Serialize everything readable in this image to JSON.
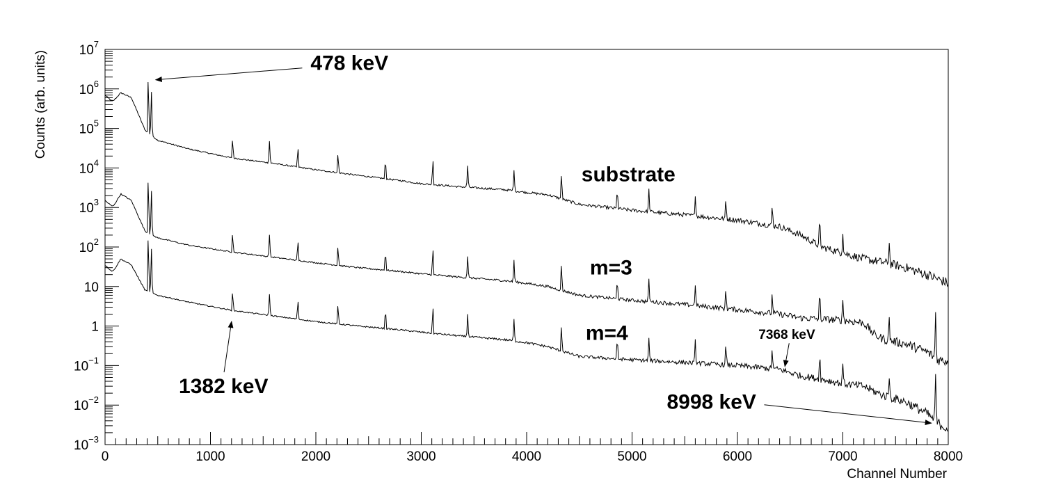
{
  "chart_data": {
    "type": "line",
    "title": "",
    "xlabel": "Channel Number",
    "ylabel": "Counts (arb. units)",
    "xlim": [
      0,
      8000
    ],
    "ylim": [
      0.001,
      10000000
    ],
    "y_scale": "log",
    "grid": false,
    "legend": "none",
    "x_ticks": [
      "0",
      "1000",
      "2000",
      "3000",
      "4000",
      "5000",
      "6000",
      "7000",
      "8000"
    ],
    "y_ticks": [
      {
        "base": "10",
        "exp": "−3",
        "value": 0.001
      },
      {
        "base": "10",
        "exp": "−2",
        "value": 0.01
      },
      {
        "base": "10",
        "exp": "−1",
        "value": 0.1
      },
      {
        "base": "1",
        "exp": "",
        "value": 1
      },
      {
        "base": "10",
        "exp": "",
        "value": 10
      },
      {
        "base": "10",
        "exp": "2",
        "value": 100
      },
      {
        "base": "10",
        "exp": "3",
        "value": 1000
      },
      {
        "base": "10",
        "exp": "4",
        "value": 10000
      },
      {
        "base": "10",
        "exp": "5",
        "value": 100000
      },
      {
        "base": "10",
        "exp": "6",
        "value": 1000000
      },
      {
        "base": "10",
        "exp": "7",
        "value": 10000000
      }
    ],
    "peak_channels": [
      410,
      440,
      1210,
      1560,
      1830,
      2210,
      2660,
      3110,
      3440,
      3880,
      4330,
      4860,
      5160,
      5600,
      5890,
      6330,
      6780,
      7000,
      7440,
      7880
    ],
    "series": [
      {
        "label": "substrate",
        "x": [
          0,
          60,
          80,
          150,
          250,
          380,
          500,
          800,
          1200,
          1600,
          2000,
          2400,
          2800,
          3000,
          3400,
          3800,
          4000,
          4200,
          4500,
          5000,
          5500,
          6000,
          6400,
          6600,
          6800,
          7000,
          7200,
          7400,
          7600,
          7800,
          8000
        ],
        "y": [
          700000,
          500000,
          500000,
          800000,
          600000,
          90000,
          50000,
          30000,
          18000,
          13000,
          9000,
          6500,
          4800,
          4000,
          3300,
          2800,
          2400,
          2100,
          1200,
          850,
          650,
          480,
          330,
          200,
          100,
          70,
          50,
          40,
          30,
          20,
          12
        ]
      },
      {
        "label": "m=3",
        "x": [
          0,
          60,
          80,
          150,
          250,
          380,
          500,
          800,
          1200,
          1600,
          2000,
          2400,
          2800,
          3000,
          3400,
          3800,
          4000,
          4200,
          4500,
          5000,
          5500,
          6000,
          6400,
          6600,
          6800,
          7000,
          7200,
          7300,
          7400,
          7600,
          7800,
          7900,
          8000
        ],
        "y": [
          1500,
          1100,
          1100,
          2200,
          1500,
          250,
          170,
          110,
          75,
          55,
          40,
          30,
          24,
          21,
          17,
          14,
          12,
          10,
          6,
          4.5,
          3.5,
          2.6,
          2,
          1.6,
          1.5,
          1.4,
          1.2,
          0.6,
          0.45,
          0.35,
          0.22,
          0.14,
          0.13
        ]
      },
      {
        "label": "m=4",
        "x": [
          0,
          60,
          80,
          150,
          250,
          380,
          500,
          800,
          1200,
          1600,
          2000,
          2400,
          2800,
          3000,
          3400,
          3800,
          4000,
          4200,
          4500,
          5000,
          5500,
          6000,
          6400,
          6600,
          6800,
          7000,
          7200,
          7300,
          7400,
          7600,
          7800,
          7900,
          8000
        ],
        "y": [
          35,
          25,
          25,
          50,
          35,
          8,
          6,
          4,
          2.5,
          1.8,
          1.3,
          1,
          0.8,
          0.7,
          0.55,
          0.45,
          0.38,
          0.3,
          0.17,
          0.14,
          0.12,
          0.1,
          0.08,
          0.055,
          0.045,
          0.035,
          0.03,
          0.022,
          0.017,
          0.012,
          0.006,
          0.0035,
          0.0025
        ]
      }
    ],
    "annotations": [
      {
        "text": "478 keV",
        "size": "large",
        "x": 1950,
        "y": 3000000,
        "arrow_to": {
          "x": 480,
          "y": 1700000
        }
      },
      {
        "text": "substrate",
        "size": "large",
        "x": 4520,
        "y": 4600,
        "arrow_to": null
      },
      {
        "text": "m=3",
        "size": "large",
        "x": 4600,
        "y": 20,
        "arrow_to": null
      },
      {
        "text": "m=4",
        "size": "large",
        "x": 4560,
        "y": 0.45,
        "arrow_to": null
      },
      {
        "text": "7368 keV",
        "size": "small",
        "x": 6200,
        "y": 0.47,
        "arrow_to": {
          "x": 6450,
          "y": 0.095
        }
      },
      {
        "text": "1382 keV",
        "size": "large",
        "x": 700,
        "y": 0.02,
        "arrow_to": {
          "x": 1200,
          "y": 1.3
        }
      },
      {
        "text": "8998 keV",
        "size": "large",
        "x": 5330,
        "y": 0.008,
        "arrow_to": {
          "x": 7840,
          "y": 0.0035
        }
      }
    ]
  }
}
